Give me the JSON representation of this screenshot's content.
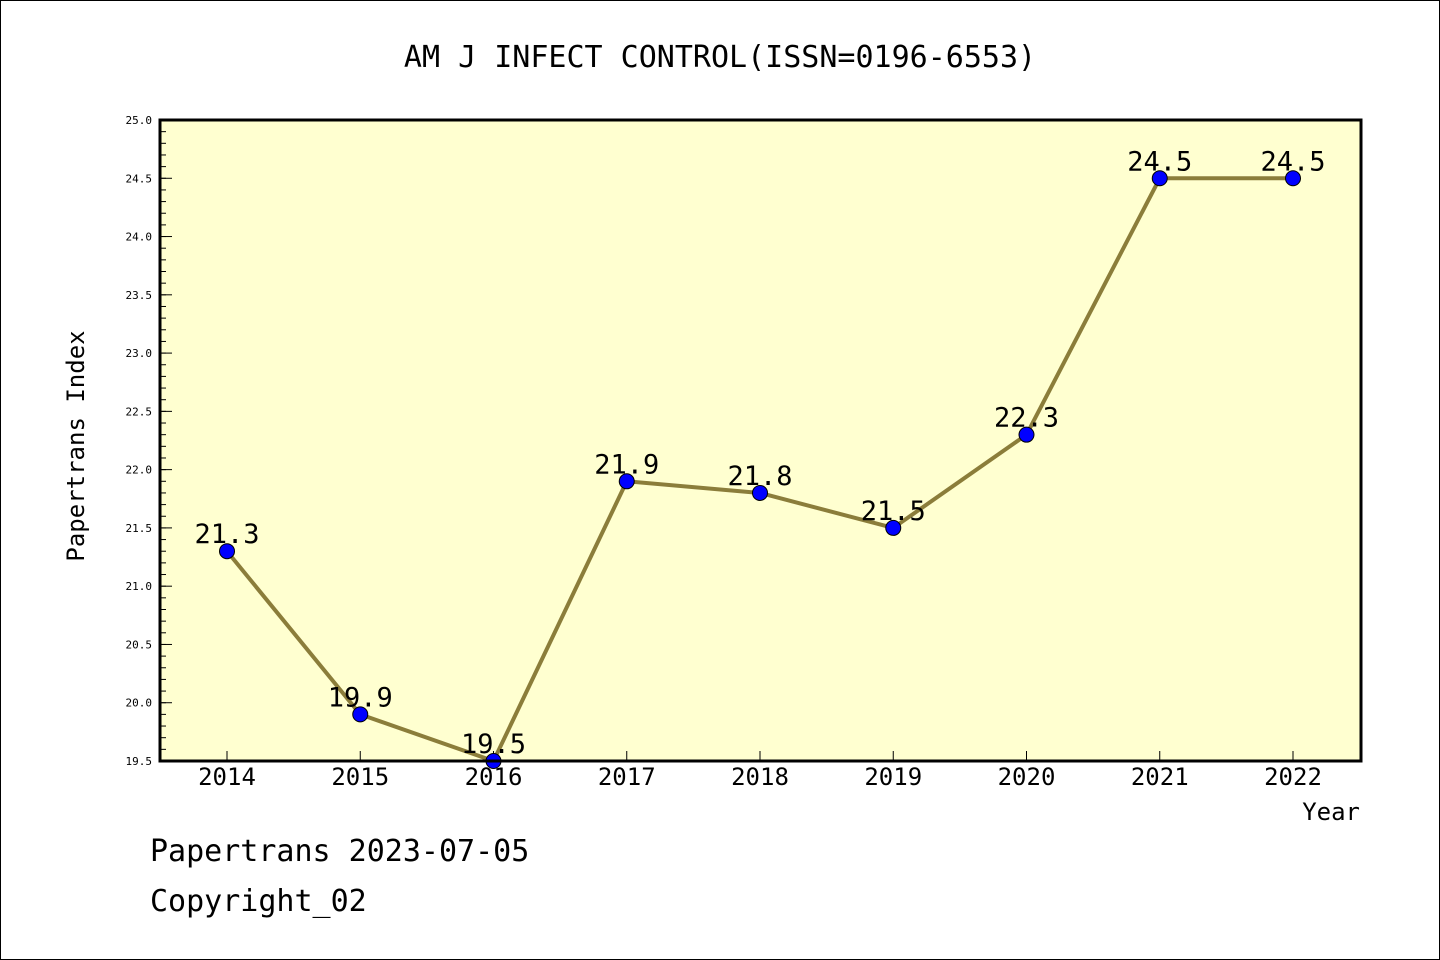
{
  "chart_data": {
    "type": "line",
    "title": "AM J INFECT CONTROL(ISSN=0196-6553)",
    "xlabel": "Year",
    "ylabel": "Papertrans Index",
    "categories": [
      "2014",
      "2015",
      "2016",
      "2017",
      "2018",
      "2019",
      "2020",
      "2021",
      "2022"
    ],
    "series": [
      {
        "values": [
          21.3,
          19.9,
          19.5,
          21.9,
          21.8,
          21.5,
          22.3,
          24.5,
          24.5
        ],
        "labels": [
          "21.3",
          "19.9",
          "19.5",
          "21.9",
          "21.8",
          "21.5",
          "22.3",
          "24.5",
          "24.5"
        ]
      }
    ],
    "ylim": [
      19.5,
      25.0
    ],
    "yticks": [
      "19.5",
      "20.0",
      "20.5",
      "21.0",
      "21.5",
      "22.0",
      "22.5",
      "23.0",
      "23.5",
      "24.0",
      "24.5",
      "25.0"
    ],
    "grid": false,
    "colors": {
      "plot_background": "#FFFFD0",
      "line": "#8B7D3A",
      "marker": "#0000FF"
    }
  },
  "footer": {
    "watermark": "Papertrans 2023-07-05",
    "copyright": "Copyright_02"
  }
}
